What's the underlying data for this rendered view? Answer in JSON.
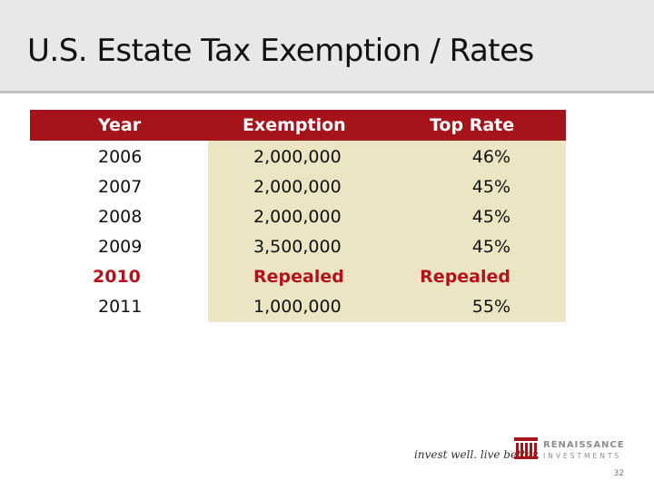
{
  "slide": {
    "title": "U.S. Estate Tax Exemption / Rates",
    "page_number": "32"
  },
  "table": {
    "headers": [
      "Year",
      "Exemption",
      "Top Rate"
    ],
    "rows": [
      {
        "year": "2006",
        "exemption": "2,000,000",
        "rate": "46%"
      },
      {
        "year": "2007",
        "exemption": "2,000,000",
        "rate": "45%"
      },
      {
        "year": "2008",
        "exemption": "2,000,000",
        "rate": "45%"
      },
      {
        "year": "2009",
        "exemption": "3,500,000",
        "rate": "45%"
      },
      {
        "year": "2010",
        "exemption": "Repealed",
        "rate": "Repealed",
        "highlight": true
      },
      {
        "year": "2011",
        "exemption": "1,000,000",
        "rate": "55%"
      }
    ]
  },
  "footer": {
    "tagline": "invest well. live better.",
    "logo_name": "RENAISSANCE",
    "logo_sub": "INVESTMENTS"
  },
  "colors": {
    "header_bg": "#a6141b",
    "highlight_text": "#b3121c",
    "body_fill": "#ebe5c3",
    "title_band": "#e9e8e6"
  }
}
